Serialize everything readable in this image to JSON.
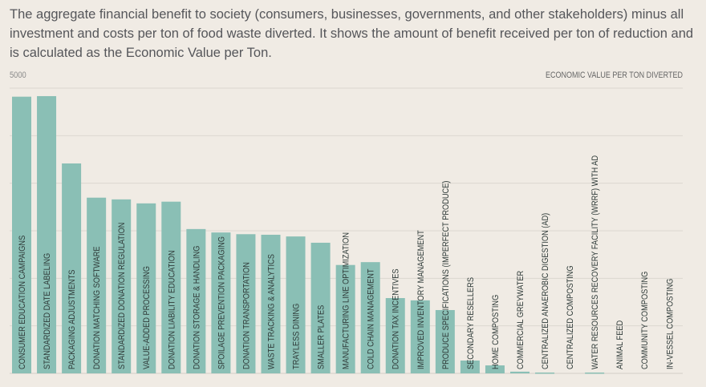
{
  "description": "The aggregate financial benefit to society (consumers, businesses, governments, and other stakeholders) minus all investment and costs per ton of food waste diverted. It shows the amount of benefit received per ton of reduction and is calculated as the Economic Value per Ton.",
  "colors": {
    "bar": "#8abfb5",
    "background": "#f0ebe4",
    "grid": "#dcd7d0",
    "text": "#55565a"
  },
  "chart_data": {
    "type": "bar",
    "title": "",
    "ylabel": "ECONOMIC VALUE PER TON DIVERTED",
    "ytick_label": "5000",
    "ylim": [
      0,
      5000
    ],
    "grid": true,
    "categories": [
      "CONSUMER EDUCATION CAMPAIGNS",
      "STANDARDIZED DATE LABELING",
      "PACKAGING ADJUSTMENTS",
      "DONATION MATCHING SOFTWARE",
      "STANDARDIZED DONATION REGULATION",
      "VALUE-ADDED PROCESSING",
      "DONATION LIABILITY EDUCATION",
      "DONATION STORAGE & HANDLING",
      "SPOILAGE PREVENTION PACKAGING",
      "DONATION TRANSPORTATION",
      "WASTE TRACKING & ANALYTICS",
      "TRAYLESS DINING",
      "SMALLER PLATES",
      "MANUFACTURING LINE OPTIMIZATION",
      "COLD CHAIN MANAGEMENT",
      "DONATION TAX INCENTIVES",
      "IMPROVED INVENTORY MANAGEMENT",
      "PRODUCE SPECIFICATIONS (IMPERFECT PRODUCE)",
      "SECONDARY RESELLERS",
      "HOME COMPOSTING",
      "COMMERCIAL GREYWATER",
      "CENTRALIZED ANAEROBIC DIGESTION (AD)",
      "CENTRALIZED COMPOSTING",
      "WATER RESOURCES RECOVERY FACILITY (WRRF) WITH AD",
      "ANIMAL FEED",
      "COMMUNITY COMPOSTING",
      "IN-VESSEL COMPOSTING"
    ],
    "values": [
      4850,
      4860,
      3680,
      3080,
      3050,
      2980,
      3010,
      2530,
      2470,
      2440,
      2430,
      2400,
      2290,
      1900,
      1950,
      1320,
      1280,
      1110,
      225,
      140,
      30,
      15,
      0,
      15,
      0,
      0,
      0
    ]
  }
}
